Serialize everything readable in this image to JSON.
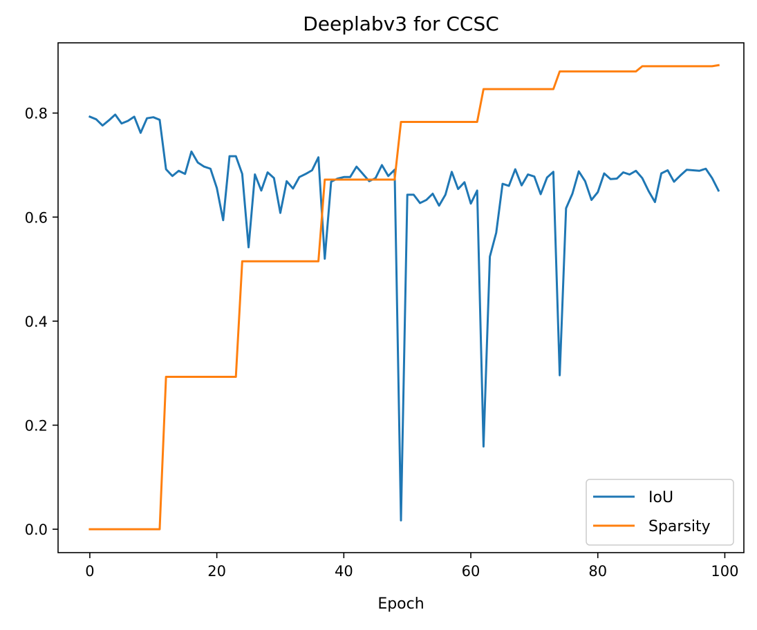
{
  "chart_data": {
    "type": "line",
    "title": "Deeplabv3 for CCSC",
    "xlabel": "Epoch",
    "ylabel": "",
    "xlim": [
      -5,
      103
    ],
    "ylim": [
      -0.045,
      0.935
    ],
    "xticks": [
      0,
      20,
      40,
      60,
      80,
      100
    ],
    "xtick_labels": [
      "0",
      "20",
      "40",
      "60",
      "80",
      "100"
    ],
    "yticks": [
      0.0,
      0.2,
      0.4,
      0.6,
      0.8
    ],
    "ytick_labels": [
      "0.0",
      "0.2",
      "0.4",
      "0.6",
      "0.8"
    ],
    "grid": false,
    "legend_position": "lower-right",
    "x": [
      0,
      1,
      2,
      3,
      4,
      5,
      6,
      7,
      8,
      9,
      10,
      11,
      12,
      13,
      14,
      15,
      16,
      17,
      18,
      19,
      20,
      21,
      22,
      23,
      24,
      25,
      26,
      27,
      28,
      29,
      30,
      31,
      32,
      33,
      34,
      35,
      36,
      37,
      38,
      39,
      40,
      41,
      42,
      43,
      44,
      45,
      46,
      47,
      48,
      49,
      50,
      51,
      52,
      53,
      54,
      55,
      56,
      57,
      58,
      59,
      60,
      61,
      62,
      63,
      64,
      65,
      66,
      67,
      68,
      69,
      70,
      71,
      72,
      73,
      74,
      75,
      76,
      77,
      78,
      79,
      80,
      81,
      82,
      83,
      84,
      85,
      86,
      87,
      88,
      89,
      90,
      91,
      92,
      93,
      94,
      95,
      96,
      97,
      98,
      99
    ],
    "series": [
      {
        "name": "IoU",
        "color": "#1f77b4",
        "values": [
          0.793,
          0.788,
          0.776,
          0.786,
          0.797,
          0.78,
          0.785,
          0.793,
          0.762,
          0.79,
          0.792,
          0.787,
          0.692,
          0.679,
          0.689,
          0.683,
          0.726,
          0.705,
          0.697,
          0.693,
          0.656,
          0.594,
          0.717,
          0.717,
          0.683,
          0.542,
          0.682,
          0.651,
          0.686,
          0.675,
          0.608,
          0.669,
          0.655,
          0.677,
          0.683,
          0.69,
          0.715,
          0.52,
          0.668,
          0.674,
          0.677,
          0.677,
          0.697,
          0.683,
          0.669,
          0.675,
          0.7,
          0.679,
          0.691,
          0.017,
          0.643,
          0.643,
          0.627,
          0.633,
          0.645,
          0.622,
          0.643,
          0.687,
          0.654,
          0.667,
          0.626,
          0.651,
          0.159,
          0.524,
          0.57,
          0.664,
          0.66,
          0.692,
          0.661,
          0.682,
          0.678,
          0.644,
          0.676,
          0.687,
          0.296,
          0.617,
          0.645,
          0.688,
          0.669,
          0.633,
          0.648,
          0.684,
          0.673,
          0.674,
          0.686,
          0.682,
          0.689,
          0.675,
          0.65,
          0.629,
          0.684,
          0.69,
          0.668,
          0.68,
          0.691,
          0.69,
          0.689,
          0.693,
          0.675,
          0.651
        ]
      },
      {
        "name": "Sparsity",
        "color": "#ff7f0e",
        "values": [
          0.0,
          0.0,
          0.0,
          0.0,
          0.0,
          0.0,
          0.0,
          0.0,
          0.0,
          0.0,
          0.0,
          0.0,
          0.293,
          0.293,
          0.293,
          0.293,
          0.293,
          0.293,
          0.293,
          0.293,
          0.293,
          0.293,
          0.293,
          0.293,
          0.515,
          0.515,
          0.515,
          0.515,
          0.515,
          0.515,
          0.515,
          0.515,
          0.515,
          0.515,
          0.515,
          0.515,
          0.515,
          0.672,
          0.672,
          0.672,
          0.672,
          0.672,
          0.672,
          0.672,
          0.672,
          0.672,
          0.672,
          0.672,
          0.672,
          0.783,
          0.783,
          0.783,
          0.783,
          0.783,
          0.783,
          0.783,
          0.783,
          0.783,
          0.783,
          0.783,
          0.783,
          0.783,
          0.846,
          0.846,
          0.846,
          0.846,
          0.846,
          0.846,
          0.846,
          0.846,
          0.846,
          0.846,
          0.846,
          0.846,
          0.88,
          0.88,
          0.88,
          0.88,
          0.88,
          0.88,
          0.88,
          0.88,
          0.88,
          0.88,
          0.88,
          0.88,
          0.88,
          0.89,
          0.89,
          0.89,
          0.89,
          0.89,
          0.89,
          0.89,
          0.89,
          0.89,
          0.89,
          0.89,
          0.89,
          0.892
        ]
      }
    ]
  }
}
